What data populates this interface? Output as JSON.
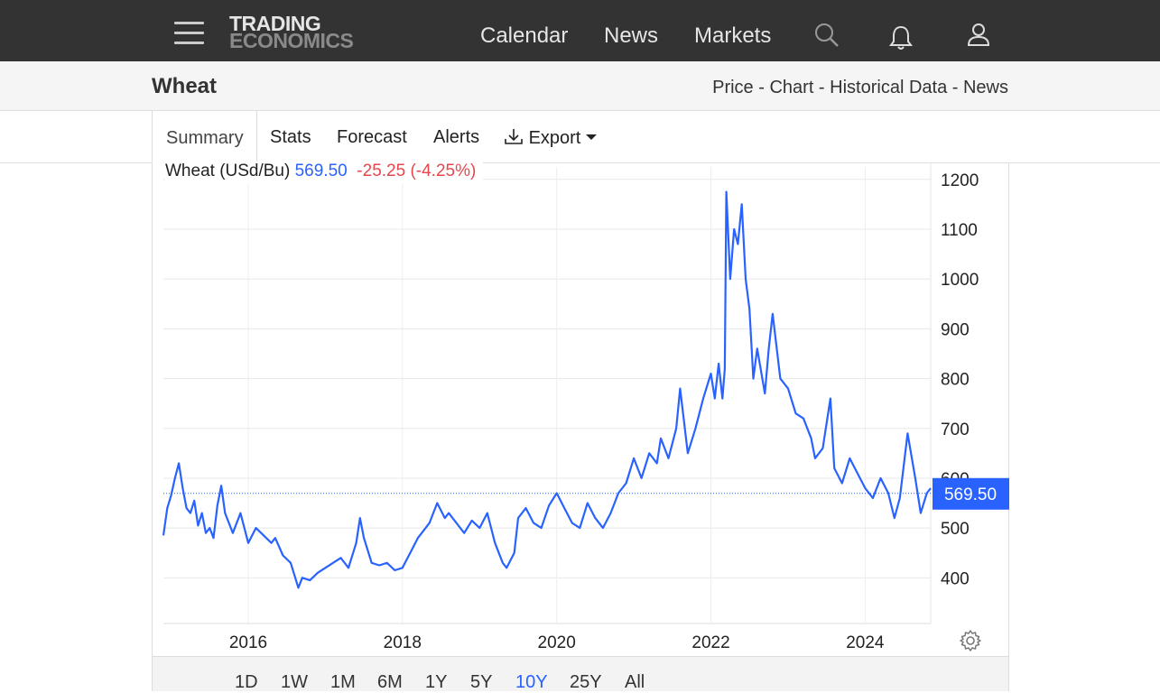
{
  "header": {
    "logo_line1": "TRADING",
    "logo_line2": "ECONOMICS",
    "nav": [
      "Calendar",
      "News",
      "Markets"
    ]
  },
  "titlebar": {
    "title": "Wheat",
    "links": [
      "Price",
      "Chart",
      "Historical Data",
      "News"
    ],
    "separator": " - "
  },
  "tabs": {
    "active": "Summary",
    "items": [
      "Stats",
      "Forecast",
      "Alerts"
    ],
    "export": "Export"
  },
  "legend": {
    "name": "Wheat (USd/Bu)",
    "price": "569.50",
    "change": "-25.25 (-4.25%)"
  },
  "ranges": {
    "items": [
      "1D",
      "1W",
      "1M",
      "6M",
      "1Y",
      "5Y",
      "10Y",
      "25Y",
      "All"
    ],
    "active": "10Y"
  },
  "colors": {
    "line": "#2962ff",
    "negative": "#e5474c",
    "header_bg": "#333333"
  },
  "chart_data": {
    "type": "line",
    "title": "",
    "xlabel": "",
    "ylabel": "",
    "last_value_label": "569.50",
    "ylim": [
      310,
      1225
    ],
    "xlim": [
      2014.9,
      2024.85
    ],
    "yticks": [
      400,
      500,
      600,
      700,
      800,
      900,
      1000,
      1100,
      1200
    ],
    "xticks": [
      2016,
      2018,
      2020,
      2022,
      2024
    ],
    "grid": true,
    "series": [
      {
        "x": [
          2014.9,
          2014.95,
          2015.0,
          2015.05,
          2015.1,
          2015.15,
          2015.2,
          2015.25,
          2015.3,
          2015.35,
          2015.4,
          2015.45,
          2015.5,
          2015.55,
          2015.6,
          2015.65,
          2015.7,
          2015.75,
          2015.8,
          2015.9,
          2016.0,
          2016.1,
          2016.2,
          2016.3,
          2016.35,
          2016.45,
          2016.55,
          2016.65,
          2016.7,
          2016.8,
          2016.9,
          2017.0,
          2017.1,
          2017.2,
          2017.3,
          2017.4,
          2017.45,
          2017.5,
          2017.55,
          2017.6,
          2017.7,
          2017.8,
          2017.9,
          2018.0,
          2018.1,
          2018.2,
          2018.3,
          2018.35,
          2018.45,
          2018.55,
          2018.6,
          2018.7,
          2018.8,
          2018.9,
          2019.0,
          2019.1,
          2019.2,
          2019.3,
          2019.35,
          2019.45,
          2019.5,
          2019.6,
          2019.7,
          2019.8,
          2019.9,
          2020.0,
          2020.1,
          2020.2,
          2020.3,
          2020.4,
          2020.5,
          2020.6,
          2020.7,
          2020.8,
          2020.9,
          2021.0,
          2021.1,
          2021.2,
          2021.3,
          2021.35,
          2021.45,
          2021.55,
          2021.6,
          2021.7,
          2021.8,
          2021.85,
          2021.9,
          2022.0,
          2022.05,
          2022.1,
          2022.15,
          2022.18,
          2022.2,
          2022.25,
          2022.3,
          2022.35,
          2022.4,
          2022.45,
          2022.5,
          2022.55,
          2022.6,
          2022.7,
          2022.75,
          2022.8,
          2022.9,
          2023.0,
          2023.1,
          2023.2,
          2023.3,
          2023.35,
          2023.45,
          2023.55,
          2023.6,
          2023.7,
          2023.8,
          2023.9,
          2024.0,
          2024.1,
          2024.2,
          2024.3,
          2024.38,
          2024.45,
          2024.55,
          2024.65,
          2024.72,
          2024.8,
          2024.85
        ],
        "y": [
          485,
          540,
          565,
          600,
          630,
          580,
          540,
          530,
          555,
          505,
          530,
          490,
          500,
          480,
          545,
          585,
          530,
          510,
          490,
          530,
          470,
          500,
          485,
          470,
          480,
          445,
          430,
          380,
          400,
          395,
          410,
          420,
          430,
          440,
          420,
          470,
          520,
          480,
          455,
          430,
          425,
          430,
          415,
          420,
          450,
          480,
          500,
          510,
          550,
          520,
          530,
          510,
          490,
          515,
          500,
          530,
          470,
          430,
          420,
          450,
          520,
          540,
          510,
          500,
          545,
          570,
          540,
          510,
          500,
          550,
          520,
          500,
          530,
          570,
          590,
          640,
          600,
          650,
          630,
          680,
          640,
          700,
          780,
          650,
          700,
          730,
          760,
          810,
          760,
          830,
          760,
          820,
          1175,
          1000,
          1100,
          1070,
          1150,
          1000,
          940,
          800,
          860,
          770,
          860,
          930,
          800,
          780,
          730,
          720,
          680,
          640,
          660,
          760,
          620,
          590,
          640,
          610,
          580,
          560,
          600,
          570,
          520,
          560,
          690,
          600,
          530,
          570,
          580
        ]
      }
    ]
  }
}
